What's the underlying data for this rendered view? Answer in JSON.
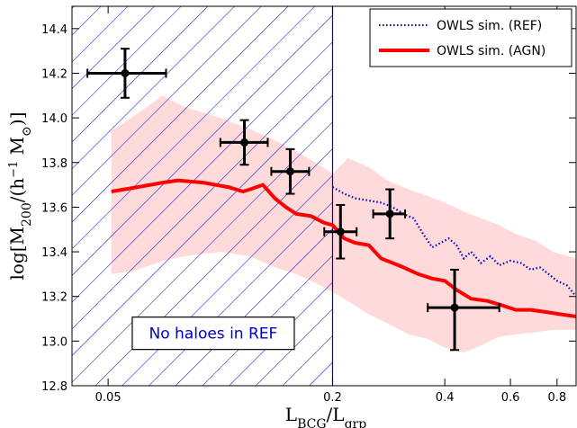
{
  "chart_data": {
    "type": "line",
    "xlabel": "L_BCG/L_grp",
    "ylabel": "log[M_200/(h^-1 M_sun)]",
    "xscale": "log",
    "xlim": [
      0.04,
      0.9
    ],
    "ylim": [
      12.8,
      14.5
    ],
    "x_ticks": [
      {
        "value": 0.05,
        "label": "0.05"
      },
      {
        "value": 0.2,
        "label": "0.2"
      },
      {
        "value": 0.4,
        "label": "0.4"
      },
      {
        "value": 0.6,
        "label": "0.6"
      },
      {
        "value": 0.8,
        "label": "0.8"
      }
    ],
    "y_ticks": [
      {
        "value": 12.8,
        "label": "12.8"
      },
      {
        "value": 13.0,
        "label": "13.0"
      },
      {
        "value": 13.2,
        "label": "13.2"
      },
      {
        "value": 13.4,
        "label": "13.4"
      },
      {
        "value": 13.6,
        "label": "13.6"
      },
      {
        "value": 13.8,
        "label": "13.8"
      },
      {
        "value": 14.0,
        "label": "14.0"
      },
      {
        "value": 14.2,
        "label": "14.2"
      },
      {
        "value": 14.4,
        "label": "14.4"
      }
    ],
    "legend_position": "top-right",
    "series": [
      {
        "name": "OWLS sim. (REF)",
        "style": "dotted",
        "color": "#0000cc",
        "points": [
          [
            0.2,
            13.69
          ],
          [
            0.215,
            13.66
          ],
          [
            0.23,
            13.64
          ],
          [
            0.25,
            13.63
          ],
          [
            0.27,
            13.62
          ],
          [
            0.29,
            13.6
          ],
          [
            0.31,
            13.57
          ],
          [
            0.33,
            13.55
          ],
          [
            0.35,
            13.48
          ],
          [
            0.37,
            13.42
          ],
          [
            0.39,
            13.44
          ],
          [
            0.41,
            13.46
          ],
          [
            0.43,
            13.43
          ],
          [
            0.45,
            13.37
          ],
          [
            0.47,
            13.4
          ],
          [
            0.5,
            13.35
          ],
          [
            0.53,
            13.38
          ],
          [
            0.56,
            13.34
          ],
          [
            0.6,
            13.36
          ],
          [
            0.64,
            13.35
          ],
          [
            0.68,
            13.32
          ],
          [
            0.72,
            13.33
          ],
          [
            0.76,
            13.3
          ],
          [
            0.8,
            13.27
          ],
          [
            0.85,
            13.25
          ],
          [
            0.9,
            13.2
          ]
        ]
      },
      {
        "name": "OWLS sim. (AGN)",
        "style": "solid",
        "color": "#ff0000",
        "points": [
          [
            0.051,
            13.67
          ],
          [
            0.06,
            13.69
          ],
          [
            0.07,
            13.71
          ],
          [
            0.077,
            13.72
          ],
          [
            0.09,
            13.71
          ],
          [
            0.105,
            13.69
          ],
          [
            0.115,
            13.67
          ],
          [
            0.12,
            13.68
          ],
          [
            0.13,
            13.7
          ],
          [
            0.14,
            13.64
          ],
          [
            0.15,
            13.6
          ],
          [
            0.16,
            13.57
          ],
          [
            0.175,
            13.56
          ],
          [
            0.19,
            13.53
          ],
          [
            0.2,
            13.52
          ],
          [
            0.215,
            13.46
          ],
          [
            0.23,
            13.44
          ],
          [
            0.25,
            13.43
          ],
          [
            0.27,
            13.37
          ],
          [
            0.29,
            13.35
          ],
          [
            0.31,
            13.33
          ],
          [
            0.34,
            13.3
          ],
          [
            0.37,
            13.28
          ],
          [
            0.4,
            13.27
          ],
          [
            0.43,
            13.23
          ],
          [
            0.47,
            13.19
          ],
          [
            0.52,
            13.18
          ],
          [
            0.57,
            13.16
          ],
          [
            0.62,
            13.14
          ],
          [
            0.68,
            13.14
          ],
          [
            0.75,
            13.13
          ],
          [
            0.82,
            13.12
          ],
          [
            0.9,
            13.11
          ]
        ]
      }
    ],
    "scatter_band": {
      "color": "#ffdada",
      "upper": [
        [
          0.051,
          13.94
        ],
        [
          0.06,
          14.02
        ],
        [
          0.07,
          14.1
        ],
        [
          0.08,
          14.05
        ],
        [
          0.1,
          14.0
        ],
        [
          0.12,
          13.95
        ],
        [
          0.14,
          13.9
        ],
        [
          0.16,
          13.85
        ],
        [
          0.18,
          13.8
        ],
        [
          0.2,
          13.75
        ],
        [
          0.22,
          13.82
        ],
        [
          0.25,
          13.78
        ],
        [
          0.28,
          13.72
        ],
        [
          0.32,
          13.68
        ],
        [
          0.36,
          13.65
        ],
        [
          0.4,
          13.62
        ],
        [
          0.45,
          13.58
        ],
        [
          0.5,
          13.55
        ],
        [
          0.56,
          13.52
        ],
        [
          0.62,
          13.48
        ],
        [
          0.7,
          13.45
        ],
        [
          0.78,
          13.4
        ],
        [
          0.9,
          13.37
        ]
      ],
      "lower": [
        [
          0.051,
          13.3
        ],
        [
          0.06,
          13.32
        ],
        [
          0.07,
          13.36
        ],
        [
          0.08,
          13.38
        ],
        [
          0.1,
          13.4
        ],
        [
          0.12,
          13.38
        ],
        [
          0.14,
          13.33
        ],
        [
          0.16,
          13.3
        ],
        [
          0.18,
          13.26
        ],
        [
          0.2,
          13.22
        ],
        [
          0.22,
          13.18
        ],
        [
          0.25,
          13.12
        ],
        [
          0.28,
          13.08
        ],
        [
          0.32,
          13.03
        ],
        [
          0.36,
          13.01
        ],
        [
          0.4,
          12.97
        ],
        [
          0.45,
          12.95
        ],
        [
          0.5,
          12.98
        ],
        [
          0.56,
          13.02
        ],
        [
          0.62,
          13.03
        ],
        [
          0.7,
          13.04
        ],
        [
          0.78,
          13.05
        ],
        [
          0.9,
          13.05
        ]
      ]
    },
    "observations": [
      {
        "x": 0.0555,
        "y": 14.2,
        "xerr": [
          0.0115,
          0.016
        ],
        "yerr": [
          0.11,
          0.11
        ]
      },
      {
        "x": 0.116,
        "y": 13.89,
        "xerr": [
          0.016,
          0.018
        ],
        "yerr": [
          0.1,
          0.1
        ]
      },
      {
        "x": 0.154,
        "y": 13.76,
        "xerr": [
          0.017,
          0.019
        ],
        "yerr": [
          0.1,
          0.1
        ]
      },
      {
        "x": 0.21,
        "y": 13.49,
        "xerr": [
          0.02,
          0.022
        ],
        "yerr": [
          0.12,
          0.12
        ]
      },
      {
        "x": 0.285,
        "y": 13.57,
        "xerr": [
          0.028,
          0.028
        ],
        "yerr": [
          0.11,
          0.11
        ]
      },
      {
        "x": 0.425,
        "y": 13.15,
        "xerr": [
          0.065,
          0.135
        ],
        "yerr": [
          0.19,
          0.17
        ]
      }
    ],
    "hatched_region": {
      "x_from": 0.04,
      "x_to": 0.2,
      "color": "#0000cc"
    },
    "annotation": {
      "text": "No haloes in REF",
      "x": 0.06,
      "y": 13.035,
      "color": "#0000cc"
    }
  }
}
